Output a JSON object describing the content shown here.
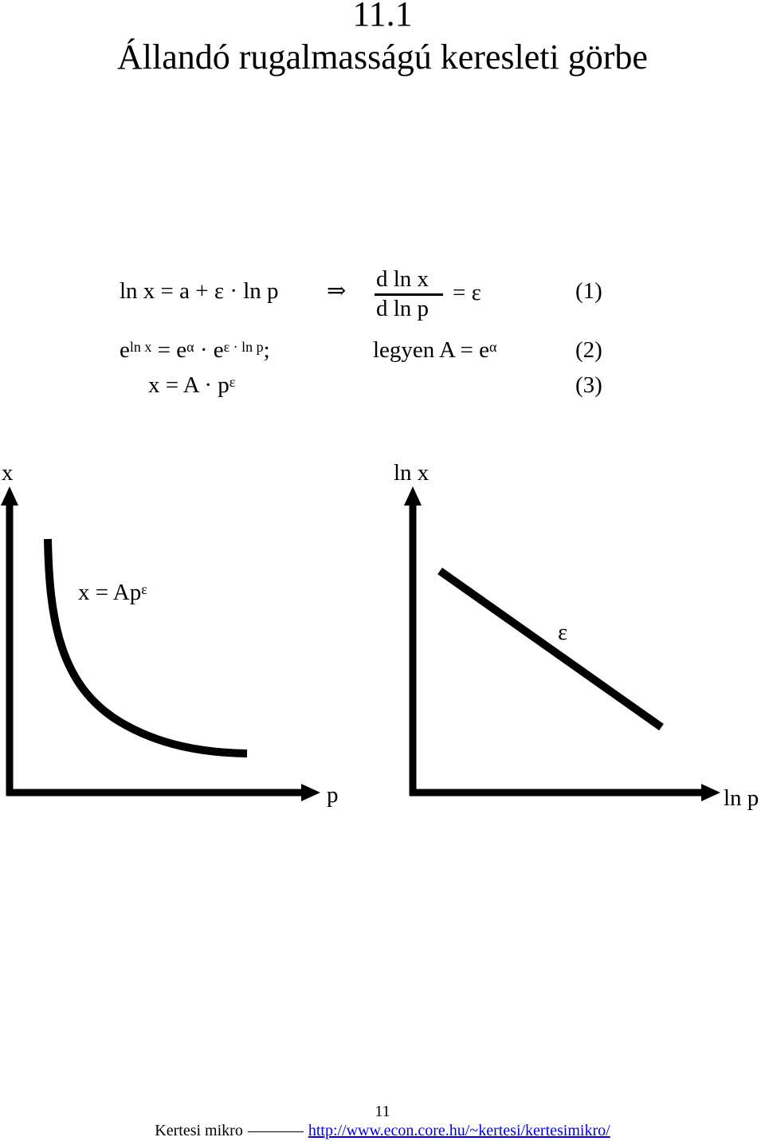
{
  "header": {
    "section_number": "11.1",
    "title": "Állandó rugalmasságú keresleti görbe"
  },
  "equations": {
    "eq1_left": "ln x = a + ε · ln p",
    "implies": "⇒",
    "eq1_numerator": "d ln x",
    "eq1_denominator": "d ln p",
    "eq1_right": "= ε",
    "eq1_number": "(1)",
    "eq2_base1": "e",
    "eq2_sup1": "ln x",
    "eq2_mid": "= e",
    "eq2_sup2": "α",
    "eq2_dot": "·",
    "eq2_base3": "e",
    "eq2_sup3": "ε · ln p",
    "eq2_semicolon": ";",
    "eq2_legyen": "legyen A = e",
    "eq2_legyen_sup": "α",
    "eq2_number": "(2)",
    "eq3_text": "x = A · p",
    "eq3_sup": "ε",
    "eq3_number": "(3)"
  },
  "left_plot": {
    "y_axis_label": "x",
    "x_axis_label": "p",
    "curve_label": "x = Ap",
    "curve_label_sup": "ε"
  },
  "right_plot": {
    "y_axis_label": "ln x",
    "x_axis_label": "ln p",
    "line_label": "ε"
  },
  "footer": {
    "page_number": "11",
    "author": "Kertesi mikro",
    "url": "http://www.econ.core.hu/~kertesi/kertesimikro/"
  }
}
